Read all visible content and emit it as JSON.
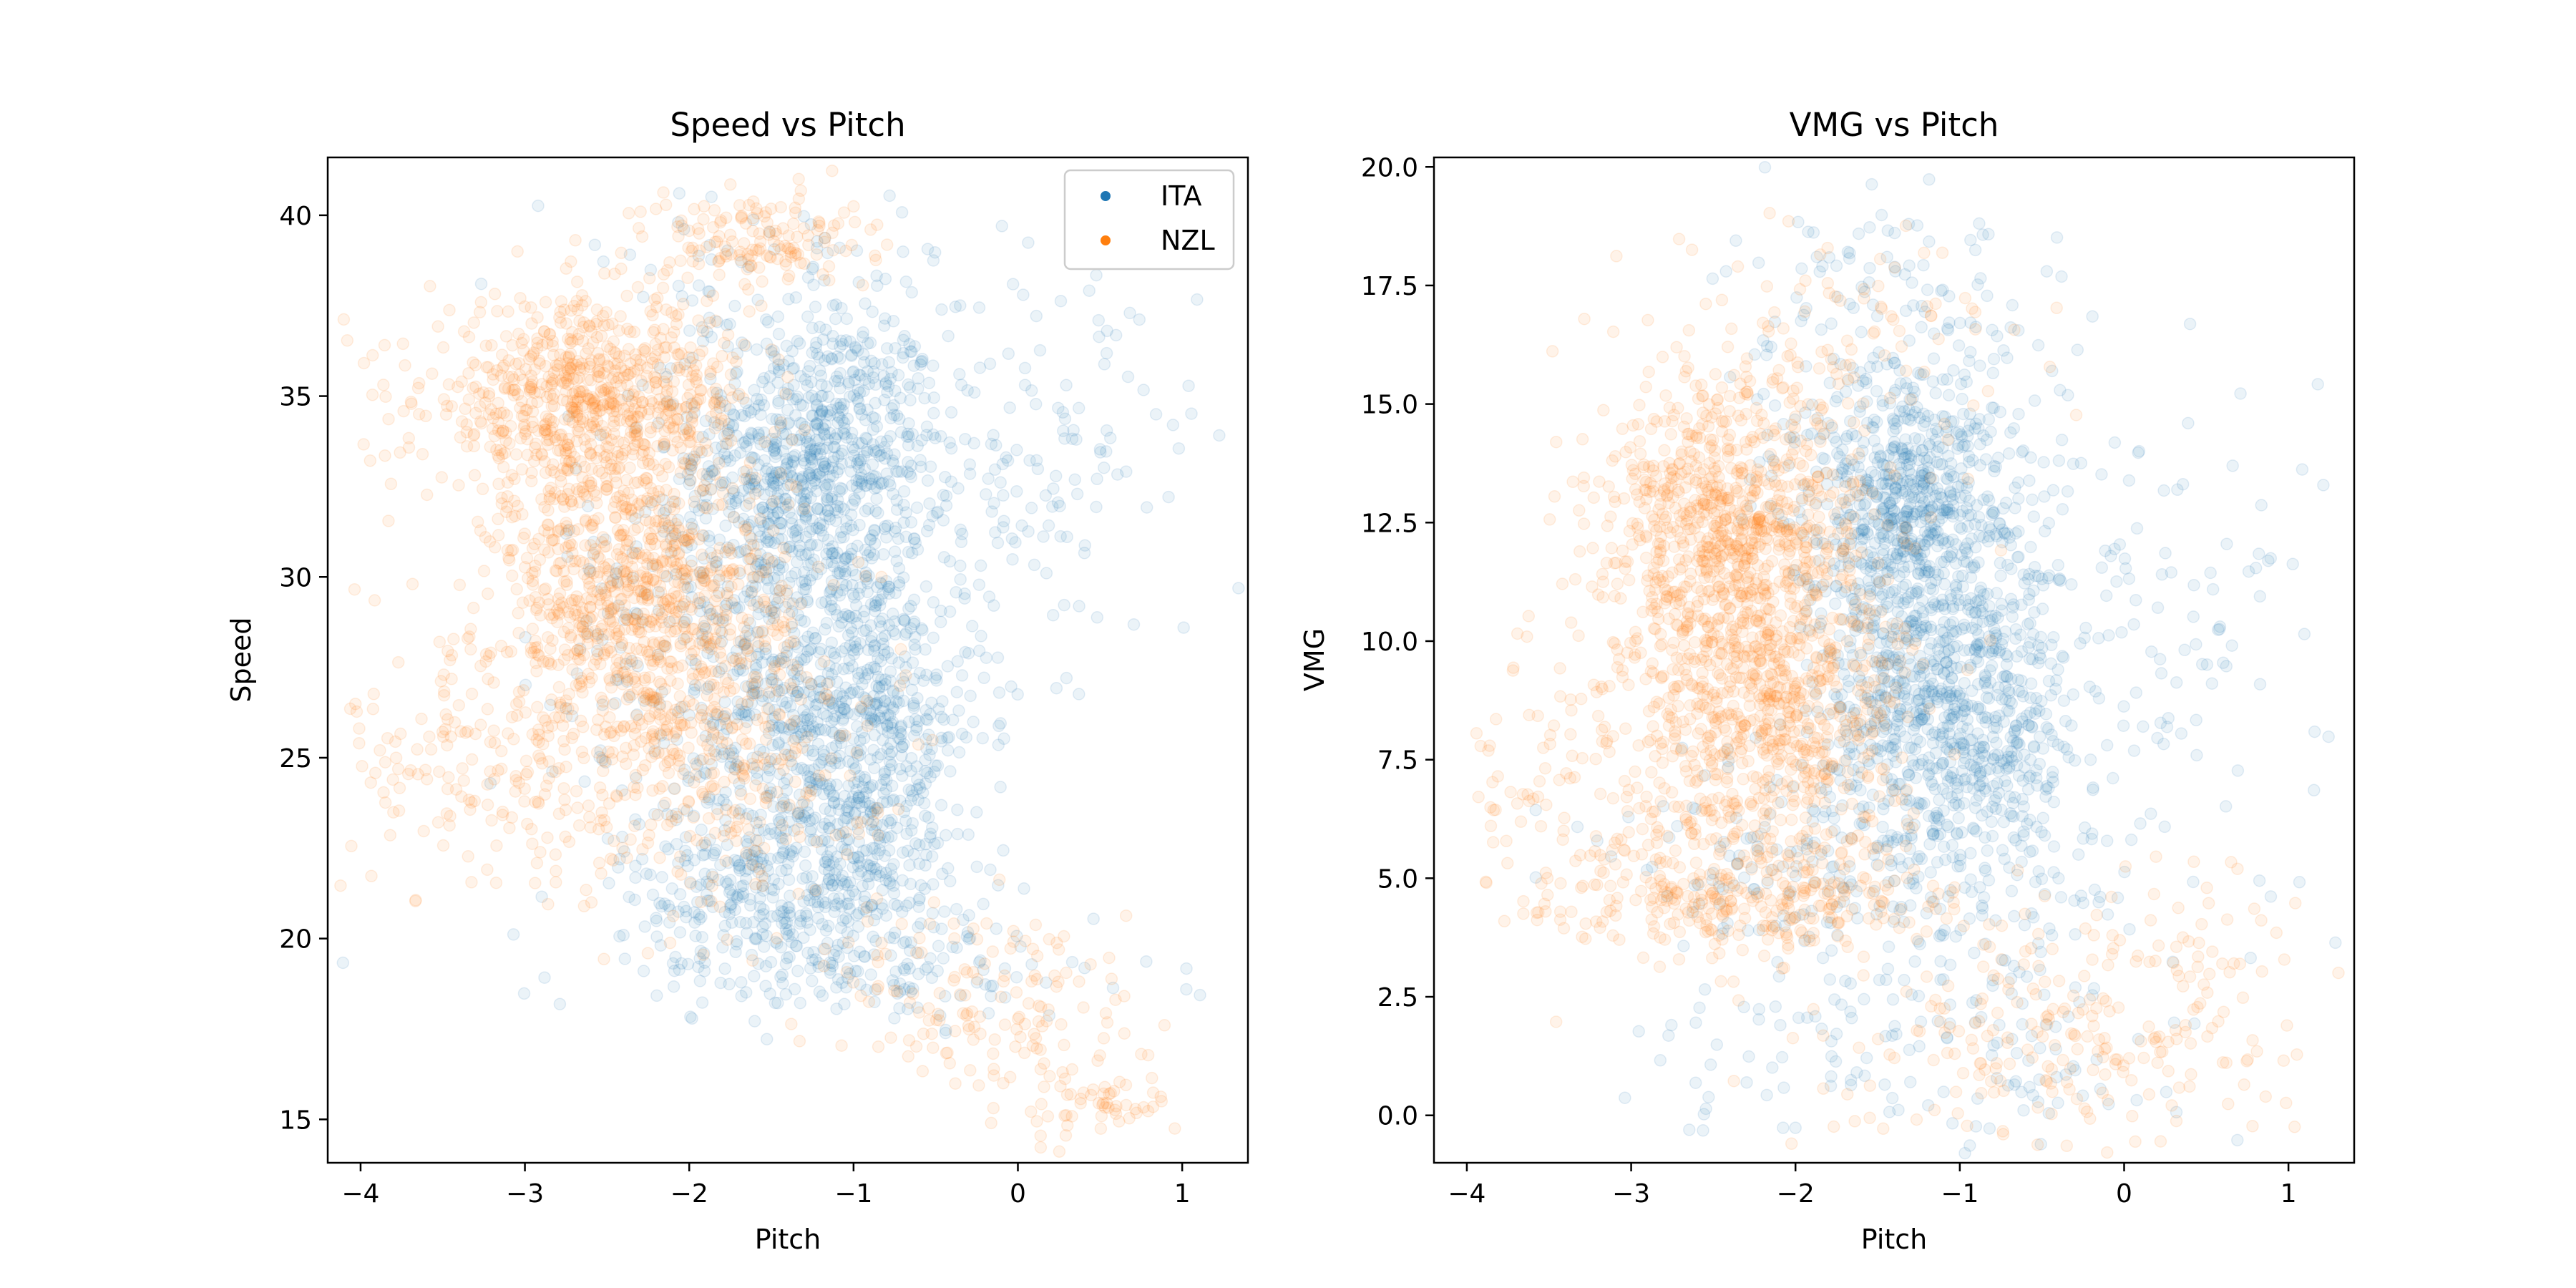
{
  "colors": {
    "ITA": "#1f77b4",
    "NZL": "#ff7f0e"
  },
  "chart_data": [
    {
      "type": "scatter",
      "title": "Speed vs Pitch",
      "xlabel": "Pitch",
      "ylabel": "Speed",
      "xlim": [
        -4.2,
        1.4
      ],
      "ylim": [
        13.8,
        41.6
      ],
      "xticks": [
        -4,
        -3,
        -2,
        -1,
        0,
        1
      ],
      "xtick_labels": [
        "−4",
        "−3",
        "−2",
        "−1",
        "0",
        "1"
      ],
      "yticks": [
        15,
        20,
        25,
        30,
        35,
        40
      ],
      "ytick_labels": [
        "15",
        "20",
        "25",
        "30",
        "35",
        "40"
      ],
      "grid": false,
      "legend": {
        "position": "top-right",
        "entries": [
          "ITA",
          "NZL"
        ]
      },
      "series": [
        {
          "name": "ITA",
          "color": "#1f77b4",
          "clusters": [
            {
              "cx": -1.2,
              "cy": 33.5,
              "sx": 0.38,
              "sy": 2.0,
              "n": 700
            },
            {
              "cx": -1.05,
              "cy": 26.0,
              "sx": 0.42,
              "sy": 2.8,
              "n": 800
            },
            {
              "cx": -1.4,
              "cy": 21.5,
              "sx": 0.5,
              "sy": 1.4,
              "n": 400
            },
            {
              "cx": -1.6,
              "cy": 29.5,
              "sx": 0.6,
              "sy": 3.0,
              "n": 400
            },
            {
              "cx": -0.9,
              "cy": 19.0,
              "sx": 1.0,
              "sy": 0.7,
              "n": 120
            },
            {
              "cx": 0.2,
              "cy": 33.0,
              "sx": 0.45,
              "sy": 2.5,
              "n": 120
            },
            {
              "cx": -1.5,
              "cy": 38.5,
              "sx": 0.7,
              "sy": 1.0,
              "n": 60
            }
          ]
        },
        {
          "name": "NZL",
          "color": "#ff7f0e",
          "clusters": [
            {
              "cx": -2.6,
              "cy": 34.8,
              "sx": 0.5,
              "sy": 1.4,
              "n": 800
            },
            {
              "cx": -2.3,
              "cy": 29.3,
              "sx": 0.45,
              "sy": 2.0,
              "n": 800
            },
            {
              "cx": -2.0,
              "cy": 25.0,
              "sx": 0.6,
              "sy": 2.0,
              "n": 400
            },
            {
              "cx": -1.6,
              "cy": 39.3,
              "sx": 0.35,
              "sy": 0.7,
              "n": 150
            },
            {
              "cx": -3.4,
              "cy": 25.0,
              "sx": 0.35,
              "sy": 2.0,
              "n": 120
            },
            {
              "cx": -0.1,
              "cy": 18.0,
              "sx": 0.45,
              "sy": 1.6,
              "n": 150
            },
            {
              "cx": 0.5,
              "cy": 15.5,
              "sx": 0.25,
              "sy": 0.5,
              "n": 50
            }
          ]
        }
      ]
    },
    {
      "type": "scatter",
      "title": "VMG vs Pitch",
      "xlabel": "Pitch",
      "ylabel": "VMG",
      "xlim": [
        -4.2,
        1.4
      ],
      "ylim": [
        -1.0,
        20.2
      ],
      "xticks": [
        -4,
        -3,
        -2,
        -1,
        0,
        1
      ],
      "xtick_labels": [
        "−4",
        "−3",
        "−2",
        "−1",
        "0",
        "1"
      ],
      "yticks": [
        0.0,
        2.5,
        5.0,
        7.5,
        10.0,
        12.5,
        15.0,
        17.5,
        20.0
      ],
      "ytick_labels": [
        "0.0",
        "2.5",
        "5.0",
        "7.5",
        "10.0",
        "12.5",
        "15.0",
        "17.5",
        "20.0"
      ],
      "grid": false,
      "series": [
        {
          "name": "ITA",
          "color": "#1f77b4",
          "clusters": [
            {
              "cx": -1.3,
              "cy": 12.8,
              "sx": 0.35,
              "sy": 1.3,
              "n": 700
            },
            {
              "cx": -1.05,
              "cy": 8.5,
              "sx": 0.4,
              "sy": 1.6,
              "n": 800
            },
            {
              "cx": -1.4,
              "cy": 16.5,
              "sx": 0.5,
              "sy": 1.5,
              "n": 150
            },
            {
              "cx": -1.2,
              "cy": 2.0,
              "sx": 0.8,
              "sy": 1.5,
              "n": 200
            },
            {
              "cx": 0.3,
              "cy": 11.0,
              "sx": 0.5,
              "sy": 3.0,
              "n": 100
            },
            {
              "cx": -1.6,
              "cy": 5.5,
              "sx": 0.7,
              "sy": 1.0,
              "n": 200
            }
          ]
        },
        {
          "name": "NZL",
          "color": "#ff7f0e",
          "clusters": [
            {
              "cx": -2.4,
              "cy": 12.5,
              "sx": 0.4,
              "sy": 1.5,
              "n": 700
            },
            {
              "cx": -2.2,
              "cy": 8.5,
              "sx": 0.45,
              "sy": 2.0,
              "n": 900
            },
            {
              "cx": -2.2,
              "cy": 4.5,
              "sx": 0.6,
              "sy": 0.6,
              "n": 250
            },
            {
              "cx": -1.8,
              "cy": 16.0,
              "sx": 0.6,
              "sy": 1.3,
              "n": 120
            },
            {
              "cx": -3.4,
              "cy": 6.5,
              "sx": 0.35,
              "sy": 1.8,
              "n": 100
            },
            {
              "cx": -0.5,
              "cy": 1.5,
              "sx": 0.6,
              "sy": 1.2,
              "n": 180
            },
            {
              "cx": 0.4,
              "cy": 3.0,
              "sx": 0.35,
              "sy": 1.5,
              "n": 80
            }
          ]
        }
      ]
    }
  ]
}
